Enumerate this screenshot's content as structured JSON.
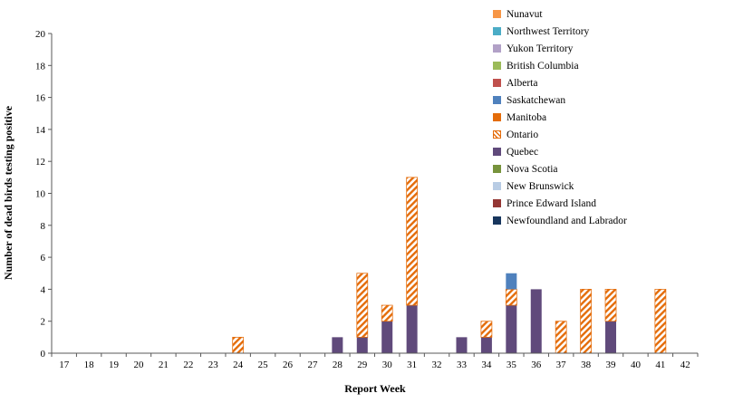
{
  "chart_data": {
    "type": "bar",
    "stacked": true,
    "title": "",
    "xlabel": "Report Week",
    "ylabel": "Number of dead birds testing positive",
    "ylim": [
      0,
      20
    ],
    "ytick_step": 2,
    "grid": false,
    "legend_position": "top-right",
    "categories": [
      "17",
      "18",
      "19",
      "20",
      "21",
      "22",
      "23",
      "24",
      "25",
      "26",
      "27",
      "28",
      "29",
      "30",
      "31",
      "32",
      "33",
      "34",
      "35",
      "36",
      "37",
      "38",
      "39",
      "40",
      "41",
      "42"
    ],
    "series": [
      {
        "name": "Quebec",
        "color": "#604A7B",
        "pattern": "solid",
        "values": [
          0,
          0,
          0,
          0,
          0,
          0,
          0,
          0,
          0,
          0,
          0,
          1,
          1,
          2,
          3,
          0,
          1,
          1,
          3,
          4,
          0,
          0,
          2,
          0,
          0,
          0
        ]
      },
      {
        "name": "Ontario",
        "color": "#E46C0A",
        "pattern": "hatch",
        "values": [
          0,
          0,
          0,
          0,
          0,
          0,
          0,
          1,
          0,
          0,
          0,
          0,
          4,
          1,
          8,
          0,
          0,
          1,
          1,
          0,
          2,
          4,
          2,
          0,
          4,
          0
        ]
      },
      {
        "name": "Saskatchewan",
        "color": "#4F81BD",
        "pattern": "solid",
        "values": [
          0,
          0,
          0,
          0,
          0,
          0,
          0,
          0,
          0,
          0,
          0,
          0,
          0,
          0,
          0,
          0,
          0,
          0,
          1,
          0,
          0,
          0,
          0,
          0,
          0,
          0
        ]
      }
    ],
    "legend": [
      {
        "label": "Nunavut",
        "color": "#F79646",
        "pattern": "solid"
      },
      {
        "label": "Northwest Territory",
        "color": "#4BACC6",
        "pattern": "solid"
      },
      {
        "label": "Yukon Territory",
        "color": "#B2A1C7",
        "pattern": "solid"
      },
      {
        "label": "British Columbia",
        "color": "#9BBB59",
        "pattern": "solid"
      },
      {
        "label": "Alberta",
        "color": "#C0504D",
        "pattern": "solid"
      },
      {
        "label": "Saskatchewan",
        "color": "#4F81BD",
        "pattern": "solid"
      },
      {
        "label": "Manitoba",
        "color": "#E46C0A",
        "pattern": "solid"
      },
      {
        "label": "Ontario",
        "color": "#E46C0A",
        "pattern": "hatch"
      },
      {
        "label": "Quebec",
        "color": "#604A7B",
        "pattern": "solid"
      },
      {
        "label": "Nova Scotia",
        "color": "#77933C",
        "pattern": "solid"
      },
      {
        "label": "New Brunswick",
        "color": "#B8CCE4",
        "pattern": "solid"
      },
      {
        "label": "Prince Edward Island",
        "color": "#943634",
        "pattern": "solid"
      },
      {
        "label": "Newfoundland and Labrador",
        "color": "#17365D",
        "pattern": "solid"
      }
    ]
  }
}
